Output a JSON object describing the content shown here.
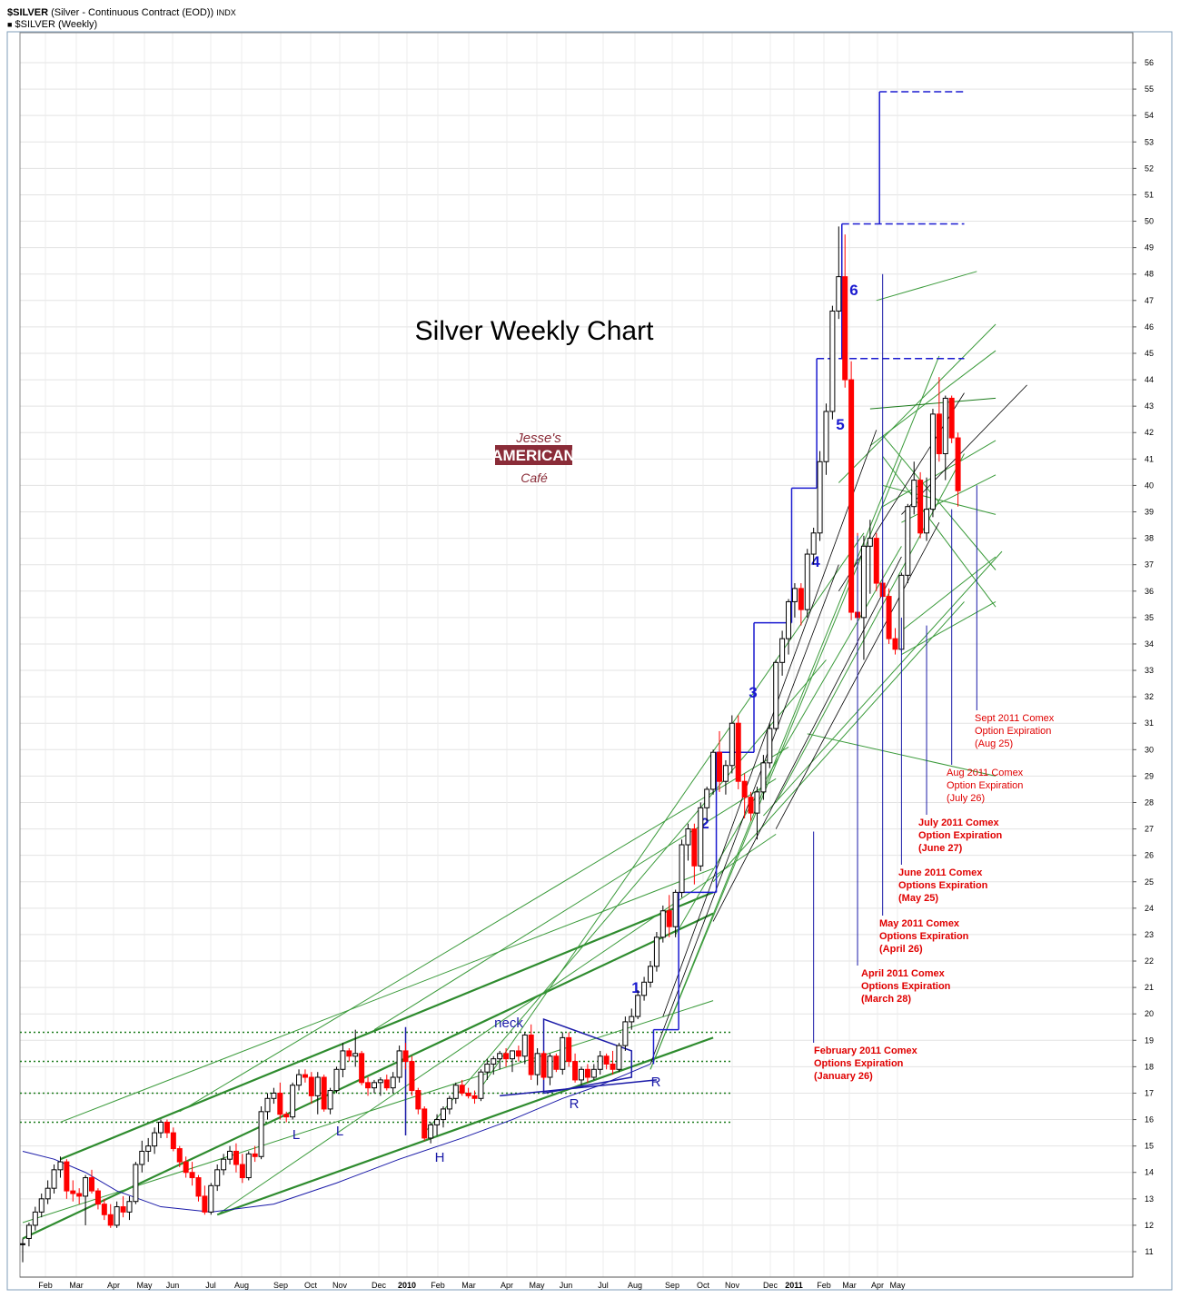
{
  "header": {
    "symbol": "$SILVER",
    "description": "(Silver - Continuous Contract (EOD))",
    "exchange": "INDX",
    "series_label": "$SILVER (Weekly)"
  },
  "title": "Silver Weekly Chart",
  "logo": {
    "line1": "Jesse's",
    "line2": "AMERICAN",
    "line3": "Café"
  },
  "chart_data": {
    "type": "candlestick",
    "title": "Silver Weekly Chart",
    "ylim": [
      10.5,
      56.8
    ],
    "y_ticks": [
      11,
      12,
      13,
      14,
      15,
      16,
      17,
      18,
      19,
      20,
      21,
      22,
      23,
      24,
      25,
      26,
      27,
      28,
      29,
      30,
      31,
      32,
      33,
      34,
      35,
      36,
      37,
      38,
      39,
      40,
      41,
      42,
      43,
      44,
      45,
      46,
      47,
      48,
      49,
      50,
      51,
      52,
      53,
      54,
      55,
      56
    ],
    "x_labels": [
      "Feb",
      "Mar",
      "Apr",
      "May",
      "Jun",
      "Jul",
      "Aug",
      "Sep",
      "Oct",
      "Nov",
      "Dec",
      "2010",
      "Feb",
      "Mar",
      "Apr",
      "May",
      "Jun",
      "Jul",
      "Aug",
      "Sep",
      "Oct",
      "Nov",
      "Dec",
      "2011",
      "Feb",
      "Mar",
      "Apr",
      "May"
    ],
    "grid": true,
    "candles": [
      {
        "o": 11.3,
        "h": 11.5,
        "l": 10.6,
        "c": 11.3
      },
      {
        "o": 11.5,
        "h": 12.1,
        "l": 11.2,
        "c": 12.0
      },
      {
        "o": 12.0,
        "h": 12.7,
        "l": 11.8,
        "c": 12.5
      },
      {
        "o": 12.5,
        "h": 13.2,
        "l": 12.3,
        "c": 13.0
      },
      {
        "o": 13.0,
        "h": 13.7,
        "l": 12.8,
        "c": 13.4
      },
      {
        "o": 13.4,
        "h": 14.3,
        "l": 13.2,
        "c": 14.1
      },
      {
        "o": 14.1,
        "h": 14.6,
        "l": 13.8,
        "c": 14.4
      },
      {
        "o": 14.4,
        "h": 14.5,
        "l": 13.0,
        "c": 13.3
      },
      {
        "o": 13.3,
        "h": 13.7,
        "l": 12.9,
        "c": 13.2
      },
      {
        "o": 13.2,
        "h": 13.4,
        "l": 12.8,
        "c": 13.1
      },
      {
        "o": 13.1,
        "h": 13.9,
        "l": 12.0,
        "c": 13.8
      },
      {
        "o": 13.8,
        "h": 14.1,
        "l": 13.2,
        "c": 13.3
      },
      {
        "o": 13.3,
        "h": 13.4,
        "l": 12.6,
        "c": 12.8
      },
      {
        "o": 12.8,
        "h": 13.0,
        "l": 12.2,
        "c": 12.4
      },
      {
        "o": 12.4,
        "h": 12.8,
        "l": 11.9,
        "c": 12.0
      },
      {
        "o": 12.0,
        "h": 12.9,
        "l": 11.9,
        "c": 12.7
      },
      {
        "o": 12.7,
        "h": 13.1,
        "l": 12.3,
        "c": 12.5
      },
      {
        "o": 12.5,
        "h": 13.1,
        "l": 12.2,
        "c": 12.9
      },
      {
        "o": 12.9,
        "h": 14.4,
        "l": 12.8,
        "c": 14.3
      },
      {
        "o": 14.3,
        "h": 15.2,
        "l": 14.0,
        "c": 14.8
      },
      {
        "o": 14.8,
        "h": 15.3,
        "l": 14.4,
        "c": 15.0
      },
      {
        "o": 15.0,
        "h": 15.7,
        "l": 14.7,
        "c": 15.5
      },
      {
        "o": 15.5,
        "h": 16.0,
        "l": 15.3,
        "c": 15.9
      },
      {
        "o": 15.9,
        "h": 16.0,
        "l": 15.3,
        "c": 15.5
      },
      {
        "o": 15.5,
        "h": 15.7,
        "l": 14.8,
        "c": 14.9
      },
      {
        "o": 14.9,
        "h": 15.0,
        "l": 14.2,
        "c": 14.4
      },
      {
        "o": 14.4,
        "h": 14.6,
        "l": 13.8,
        "c": 14.0
      },
      {
        "o": 14.0,
        "h": 14.4,
        "l": 13.5,
        "c": 13.8
      },
      {
        "o": 13.8,
        "h": 13.9,
        "l": 12.9,
        "c": 13.1
      },
      {
        "o": 13.1,
        "h": 13.5,
        "l": 12.4,
        "c": 12.5
      },
      {
        "o": 12.5,
        "h": 13.6,
        "l": 12.4,
        "c": 13.5
      },
      {
        "o": 13.5,
        "h": 14.3,
        "l": 13.3,
        "c": 14.1
      },
      {
        "o": 14.1,
        "h": 14.7,
        "l": 13.9,
        "c": 14.5
      },
      {
        "o": 14.5,
        "h": 15.0,
        "l": 14.3,
        "c": 14.8
      },
      {
        "o": 14.8,
        "h": 15.1,
        "l": 14.0,
        "c": 14.3
      },
      {
        "o": 14.3,
        "h": 14.7,
        "l": 13.6,
        "c": 13.8
      },
      {
        "o": 13.8,
        "h": 14.8,
        "l": 13.7,
        "c": 14.7
      },
      {
        "o": 14.7,
        "h": 15.0,
        "l": 14.4,
        "c": 14.6
      },
      {
        "o": 14.6,
        "h": 16.5,
        "l": 14.5,
        "c": 16.3
      },
      {
        "o": 16.3,
        "h": 17.0,
        "l": 16.0,
        "c": 16.8
      },
      {
        "o": 16.8,
        "h": 17.2,
        "l": 16.6,
        "c": 17.0
      },
      {
        "o": 17.0,
        "h": 17.4,
        "l": 16.0,
        "c": 16.2
      },
      {
        "o": 16.2,
        "h": 16.3,
        "l": 15.9,
        "c": 16.1
      },
      {
        "o": 16.1,
        "h": 17.4,
        "l": 16.0,
        "c": 17.3
      },
      {
        "o": 17.3,
        "h": 17.9,
        "l": 17.1,
        "c": 17.7
      },
      {
        "o": 17.7,
        "h": 17.9,
        "l": 17.4,
        "c": 17.6
      },
      {
        "o": 17.6,
        "h": 17.8,
        "l": 16.6,
        "c": 16.9
      },
      {
        "o": 16.9,
        "h": 17.8,
        "l": 16.2,
        "c": 17.6
      },
      {
        "o": 17.6,
        "h": 17.7,
        "l": 16.3,
        "c": 16.4
      },
      {
        "o": 16.4,
        "h": 17.2,
        "l": 16.2,
        "c": 17.1
      },
      {
        "o": 17.1,
        "h": 18.0,
        "l": 17.0,
        "c": 17.9
      },
      {
        "o": 17.9,
        "h": 18.9,
        "l": 17.6,
        "c": 18.6
      },
      {
        "o": 18.6,
        "h": 18.7,
        "l": 18.2,
        "c": 18.4
      },
      {
        "o": 18.4,
        "h": 19.4,
        "l": 18.0,
        "c": 18.5
      },
      {
        "o": 18.5,
        "h": 18.6,
        "l": 17.3,
        "c": 17.4
      },
      {
        "o": 17.4,
        "h": 17.6,
        "l": 16.9,
        "c": 17.2
      },
      {
        "o": 17.2,
        "h": 17.5,
        "l": 17.0,
        "c": 17.4
      },
      {
        "o": 17.4,
        "h": 17.6,
        "l": 16.9,
        "c": 17.5
      },
      {
        "o": 17.5,
        "h": 17.7,
        "l": 17.1,
        "c": 17.2
      },
      {
        "o": 17.2,
        "h": 17.8,
        "l": 17.0,
        "c": 17.6
      },
      {
        "o": 17.6,
        "h": 18.8,
        "l": 17.4,
        "c": 18.6
      },
      {
        "o": 18.6,
        "h": 18.9,
        "l": 17.9,
        "c": 18.2
      },
      {
        "o": 18.2,
        "h": 18.4,
        "l": 16.9,
        "c": 17.1
      },
      {
        "o": 17.1,
        "h": 17.2,
        "l": 16.2,
        "c": 16.4
      },
      {
        "o": 16.4,
        "h": 16.5,
        "l": 15.2,
        "c": 15.3
      },
      {
        "o": 15.3,
        "h": 15.9,
        "l": 15.1,
        "c": 15.8
      },
      {
        "o": 15.8,
        "h": 16.2,
        "l": 15.4,
        "c": 16.0
      },
      {
        "o": 16.0,
        "h": 16.5,
        "l": 15.7,
        "c": 16.4
      },
      {
        "o": 16.4,
        "h": 16.9,
        "l": 16.2,
        "c": 16.8
      },
      {
        "o": 16.8,
        "h": 17.4,
        "l": 16.6,
        "c": 17.3
      },
      {
        "o": 17.3,
        "h": 17.5,
        "l": 16.9,
        "c": 17.0
      },
      {
        "o": 17.0,
        "h": 17.2,
        "l": 16.8,
        "c": 16.9
      },
      {
        "o": 16.9,
        "h": 17.1,
        "l": 16.6,
        "c": 16.8
      },
      {
        "o": 16.8,
        "h": 17.9,
        "l": 16.7,
        "c": 17.8
      },
      {
        "o": 17.8,
        "h": 18.3,
        "l": 17.5,
        "c": 18.1
      },
      {
        "o": 18.1,
        "h": 18.4,
        "l": 17.7,
        "c": 18.3
      },
      {
        "o": 18.3,
        "h": 18.6,
        "l": 17.9,
        "c": 18.5
      },
      {
        "o": 18.5,
        "h": 18.7,
        "l": 18.0,
        "c": 18.3
      },
      {
        "o": 18.3,
        "h": 18.6,
        "l": 17.8,
        "c": 18.6
      },
      {
        "o": 18.6,
        "h": 18.8,
        "l": 18.2,
        "c": 18.4
      },
      {
        "o": 18.4,
        "h": 19.3,
        "l": 18.1,
        "c": 19.2
      },
      {
        "o": 19.2,
        "h": 19.6,
        "l": 17.5,
        "c": 17.7
      },
      {
        "o": 17.7,
        "h": 18.7,
        "l": 17.3,
        "c": 18.5
      },
      {
        "o": 18.5,
        "h": 18.6,
        "l": 17.5,
        "c": 17.6
      },
      {
        "o": 17.6,
        "h": 18.5,
        "l": 17.3,
        "c": 18.4
      },
      {
        "o": 18.4,
        "h": 18.5,
        "l": 17.8,
        "c": 17.9
      },
      {
        "o": 17.9,
        "h": 19.3,
        "l": 17.7,
        "c": 19.1
      },
      {
        "o": 19.1,
        "h": 19.3,
        "l": 18.0,
        "c": 18.2
      },
      {
        "o": 18.2,
        "h": 18.5,
        "l": 17.4,
        "c": 17.5
      },
      {
        "o": 17.5,
        "h": 18.0,
        "l": 17.3,
        "c": 17.9
      },
      {
        "o": 17.9,
        "h": 18.1,
        "l": 17.4,
        "c": 17.6
      },
      {
        "o": 17.6,
        "h": 18.1,
        "l": 17.5,
        "c": 17.9
      },
      {
        "o": 17.9,
        "h": 18.6,
        "l": 17.7,
        "c": 18.4
      },
      {
        "o": 18.4,
        "h": 18.5,
        "l": 17.9,
        "c": 18.1
      },
      {
        "o": 18.1,
        "h": 18.6,
        "l": 17.7,
        "c": 17.9
      },
      {
        "o": 17.9,
        "h": 18.9,
        "l": 17.8,
        "c": 18.8
      },
      {
        "o": 18.8,
        "h": 19.9,
        "l": 18.6,
        "c": 19.7
      },
      {
        "o": 19.7,
        "h": 20.2,
        "l": 19.4,
        "c": 19.9
      },
      {
        "o": 19.9,
        "h": 20.9,
        "l": 19.8,
        "c": 20.7
      },
      {
        "o": 20.7,
        "h": 21.4,
        "l": 20.5,
        "c": 21.2
      },
      {
        "o": 21.2,
        "h": 22.0,
        "l": 21.0,
        "c": 21.8
      },
      {
        "o": 21.8,
        "h": 23.1,
        "l": 21.6,
        "c": 22.9
      },
      {
        "o": 22.9,
        "h": 24.1,
        "l": 22.7,
        "c": 23.9
      },
      {
        "o": 23.9,
        "h": 24.5,
        "l": 22.9,
        "c": 23.3
      },
      {
        "o": 23.3,
        "h": 24.7,
        "l": 22.9,
        "c": 24.6
      },
      {
        "o": 24.6,
        "h": 26.6,
        "l": 24.4,
        "c": 26.4
      },
      {
        "o": 26.4,
        "h": 27.2,
        "l": 25.8,
        "c": 27.0
      },
      {
        "o": 27.0,
        "h": 27.2,
        "l": 24.9,
        "c": 25.6
      },
      {
        "o": 25.6,
        "h": 28.0,
        "l": 25.4,
        "c": 27.8
      },
      {
        "o": 27.8,
        "h": 28.6,
        "l": 27.3,
        "c": 28.5
      },
      {
        "o": 28.5,
        "h": 30.0,
        "l": 28.3,
        "c": 29.9
      },
      {
        "o": 29.9,
        "h": 30.7,
        "l": 28.4,
        "c": 28.8
      },
      {
        "o": 28.8,
        "h": 29.6,
        "l": 28.3,
        "c": 29.4
      },
      {
        "o": 29.4,
        "h": 31.3,
        "l": 29.1,
        "c": 31.0
      },
      {
        "o": 31.0,
        "h": 31.3,
        "l": 28.5,
        "c": 28.8
      },
      {
        "o": 28.8,
        "h": 29.1,
        "l": 27.4,
        "c": 28.2
      },
      {
        "o": 28.2,
        "h": 28.4,
        "l": 27.3,
        "c": 27.6
      },
      {
        "o": 27.6,
        "h": 28.6,
        "l": 26.6,
        "c": 28.4
      },
      {
        "o": 28.4,
        "h": 29.8,
        "l": 28.1,
        "c": 29.5
      },
      {
        "o": 29.5,
        "h": 31.0,
        "l": 29.3,
        "c": 30.8
      },
      {
        "o": 30.8,
        "h": 33.4,
        "l": 30.7,
        "c": 33.3
      },
      {
        "o": 33.3,
        "h": 34.5,
        "l": 32.8,
        "c": 34.2
      },
      {
        "o": 34.2,
        "h": 35.7,
        "l": 33.6,
        "c": 35.6
      },
      {
        "o": 35.6,
        "h": 36.3,
        "l": 35.0,
        "c": 36.1
      },
      {
        "o": 36.1,
        "h": 36.3,
        "l": 34.7,
        "c": 35.3
      },
      {
        "o": 35.3,
        "h": 37.6,
        "l": 35.0,
        "c": 37.4
      },
      {
        "o": 37.4,
        "h": 38.4,
        "l": 37.0,
        "c": 38.2
      },
      {
        "o": 38.2,
        "h": 41.3,
        "l": 37.9,
        "c": 40.9
      },
      {
        "o": 40.9,
        "h": 43.1,
        "l": 40.4,
        "c": 42.8
      },
      {
        "o": 42.8,
        "h": 46.8,
        "l": 42.5,
        "c": 46.6
      },
      {
        "o": 46.6,
        "h": 49.8,
        "l": 46.3,
        "c": 47.9
      },
      {
        "o": 47.9,
        "h": 49.5,
        "l": 43.7,
        "c": 44.0
      },
      {
        "o": 44.0,
        "h": 44.7,
        "l": 34.9,
        "c": 35.2
      },
      {
        "o": 35.2,
        "h": 38.2,
        "l": 32.9,
        "c": 35.0
      },
      {
        "o": 35.0,
        "h": 38.1,
        "l": 33.4,
        "c": 37.7
      },
      {
        "o": 37.7,
        "h": 38.7,
        "l": 35.9,
        "c": 38.0
      },
      {
        "o": 38.0,
        "h": 38.2,
        "l": 36.0,
        "c": 36.3
      },
      {
        "o": 36.3,
        "h": 36.8,
        "l": 35.0,
        "c": 35.8
      },
      {
        "o": 35.8,
        "h": 36.1,
        "l": 34.0,
        "c": 34.2
      },
      {
        "o": 34.2,
        "h": 34.6,
        "l": 33.6,
        "c": 33.8
      },
      {
        "o": 33.8,
        "h": 36.7,
        "l": 33.7,
        "c": 36.6
      },
      {
        "o": 36.6,
        "h": 39.3,
        "l": 36.3,
        "c": 39.2
      },
      {
        "o": 39.2,
        "h": 40.9,
        "l": 38.9,
        "c": 40.2
      },
      {
        "o": 40.2,
        "h": 40.5,
        "l": 38.0,
        "c": 38.2
      },
      {
        "o": 38.2,
        "h": 40.3,
        "l": 37.9,
        "c": 39.1
      },
      {
        "o": 39.1,
        "h": 42.9,
        "l": 38.8,
        "c": 42.7
      },
      {
        "o": 42.7,
        "h": 44.1,
        "l": 40.9,
        "c": 41.2
      },
      {
        "o": 41.2,
        "h": 43.4,
        "l": 40.2,
        "c": 43.3
      },
      {
        "o": 43.3,
        "h": 43.4,
        "l": 41.6,
        "c": 41.8
      },
      {
        "o": 41.8,
        "h": 42.0,
        "l": 39.2,
        "c": 39.8
      }
    ],
    "moving_average": [
      [
        14.8,
        0
      ],
      [
        14.5,
        5
      ],
      [
        14.0,
        10
      ],
      [
        13.3,
        15
      ],
      [
        12.7,
        22
      ],
      [
        12.5,
        30
      ],
      [
        12.8,
        40
      ],
      [
        13.6,
        50
      ],
      [
        14.5,
        60
      ],
      [
        15.3,
        70
      ],
      [
        16.0,
        78
      ],
      [
        16.8,
        86
      ],
      [
        17.3,
        92
      ],
      [
        17.8,
        97
      ],
      [
        18.1,
        100
      ]
    ],
    "horizontal_levels": [
      15.9,
      17.0,
      18.2,
      19.3
    ],
    "step_levels": [
      18.1,
      19.4,
      24.6,
      29.9,
      34.8,
      39.9,
      44.8,
      49.9,
      54.9
    ],
    "step_labels": [
      "1",
      "2",
      "3",
      "4",
      "5",
      "6"
    ],
    "annotations": [
      {
        "text": "neck"
      },
      {
        "text": "L"
      },
      {
        "text": "L"
      },
      {
        "text": "H"
      },
      {
        "text": "R"
      },
      {
        "text": "R"
      }
    ],
    "expirations": [
      {
        "lines": [
          "February 2011 Comex",
          "Options Expiration",
          "(January 26)"
        ],
        "bold": true,
        "target": 26.9
      },
      {
        "lines": [
          "April 2011 Comex",
          "Options Expiration",
          "(March 28)"
        ],
        "bold": true,
        "target": 38.1
      },
      {
        "lines": [
          "May 2011 Comex",
          "Options Expiration",
          "(April 26)"
        ],
        "bold": true,
        "target": 48.0
      },
      {
        "lines": [
          "June 2011 Comex",
          "Options Expiration",
          "(May 25)"
        ],
        "bold": true,
        "target": 35.0
      },
      {
        "lines": [
          "July 2011 Comex",
          "Option Expiration",
          "(June 27)"
        ],
        "bold": true,
        "target": 34.7
      },
      {
        "lines": [
          "Aug 2011 Comex",
          "Option Expiration",
          "(July 26)"
        ],
        "bold": false,
        "target": 39.1
      },
      {
        "lines": [
          "Sept 2011 Comex",
          "Option Expiration",
          "(Aug 25)"
        ],
        "bold": false,
        "target": 40.0
      }
    ]
  }
}
